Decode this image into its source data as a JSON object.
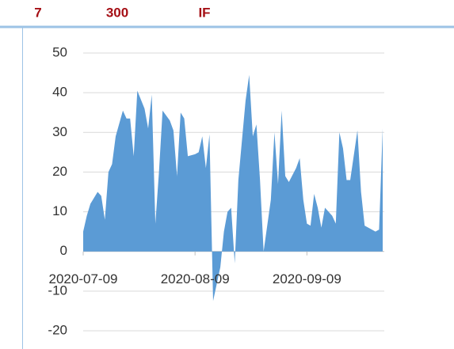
{
  "header": {
    "items": [
      "7",
      "300",
      "IF"
    ]
  },
  "chart_data": {
    "type": "area",
    "color": "#5b9bd5",
    "grid": true,
    "x": [
      "2020-07-09",
      "2020-07-10",
      "2020-07-11",
      "2020-07-13",
      "2020-07-14",
      "2020-07-15",
      "2020-07-16",
      "2020-07-17",
      "2020-07-18",
      "2020-07-20",
      "2020-07-21",
      "2020-07-22",
      "2020-07-23",
      "2020-07-24",
      "2020-07-26",
      "2020-07-27",
      "2020-07-28",
      "2020-07-29",
      "2020-07-30",
      "2020-07-31",
      "2020-08-02",
      "2020-08-03",
      "2020-08-04",
      "2020-08-05",
      "2020-08-06",
      "2020-08-07",
      "2020-08-09",
      "2020-08-10",
      "2020-08-11",
      "2020-08-12",
      "2020-08-13",
      "2020-08-14",
      "2020-08-16",
      "2020-08-17",
      "2020-08-18",
      "2020-08-19",
      "2020-08-20",
      "2020-08-21",
      "2020-08-23",
      "2020-08-24",
      "2020-08-25",
      "2020-08-26",
      "2020-08-27",
      "2020-08-28",
      "2020-08-30",
      "2020-08-31",
      "2020-09-01",
      "2020-09-02",
      "2020-09-03",
      "2020-09-04",
      "2020-09-06",
      "2020-09-07",
      "2020-09-08",
      "2020-09-09",
      "2020-09-10",
      "2020-09-11",
      "2020-09-12",
      "2020-09-13",
      "2020-09-14",
      "2020-09-16",
      "2020-09-17",
      "2020-09-18",
      "2020-09-19",
      "2020-09-20",
      "2020-09-21",
      "2020-09-23",
      "2020-09-24",
      "2020-09-25",
      "2020-09-26",
      "2020-09-28",
      "2020-09-29",
      "2020-09-30"
    ],
    "values": [
      5,
      9,
      12,
      15,
      14,
      8,
      20,
      22,
      29,
      35.5,
      33.5,
      33.5,
      24,
      40.5,
      36,
      31,
      39.5,
      7,
      20,
      35.5,
      33,
      30.5,
      19,
      35,
      33.5,
      24,
      24.5,
      25,
      29,
      21,
      29.5,
      -12.5,
      -4,
      5,
      10,
      11,
      -3,
      18,
      38,
      44.5,
      29,
      32,
      18,
      0,
      13,
      30,
      17,
      35.5,
      19,
      17.5,
      21,
      23.5,
      13,
      7,
      6.5,
      14.5,
      11,
      6,
      11,
      9,
      7,
      30,
      26,
      18,
      18,
      30.5,
      15,
      6.5,
      6,
      5,
      5.5,
      31
    ],
    "xlim": [
      "2020-07-09",
      "2020-09-30"
    ],
    "xticks": [
      "2020-07-09",
      "2020-08-09",
      "2020-09-09"
    ],
    "ylim": [
      -20,
      50
    ],
    "yticks": [
      -20,
      -10,
      0,
      10,
      20,
      30,
      40,
      50
    ]
  }
}
